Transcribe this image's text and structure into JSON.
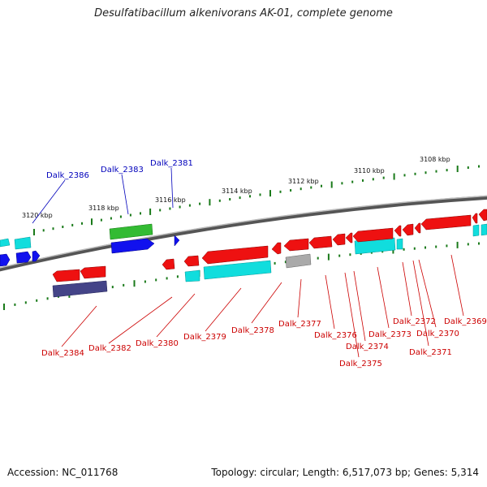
{
  "title": "Desulfatibacillum alkenivorans AK-01, complete genome",
  "footer": {
    "accession": "Accession: NC_011768",
    "summary": "Topology: circular; Length: 6,517,073 bp; Genes: 5,314"
  },
  "colors": {
    "backbone": "#7a7a7a",
    "tick": "#1a7a1a",
    "label_upper": "#0000bb",
    "label_lower": "#cc0000",
    "gene_red": "#ee1111",
    "gene_cyan": "#11dddd",
    "gene_blue": "#1111ee",
    "gene_green": "#33bb33",
    "gene_navy": "#444488",
    "gene_grey": "#aaaaaa"
  },
  "scale_labels": [
    "3120 kbp",
    "3118 kbp",
    "3116 kbp",
    "3114 kbp",
    "3112 kbp",
    "3110 kbp",
    "3108 kbp"
  ],
  "upper_labels": [
    "Dalk_2386",
    "Dalk_2383",
    "Dalk_2381"
  ],
  "lower_labels": [
    "Dalk_2384",
    "Dalk_2382",
    "Dalk_2380",
    "Dalk_2379",
    "Dalk_2378",
    "Dalk_2377",
    "Dalk_2376",
    "Dalk_2375",
    "Dalk_2374",
    "Dalk_2373",
    "Dalk_2372",
    "Dalk_2371",
    "Dalk_2370",
    "Dalk_2369"
  ]
}
